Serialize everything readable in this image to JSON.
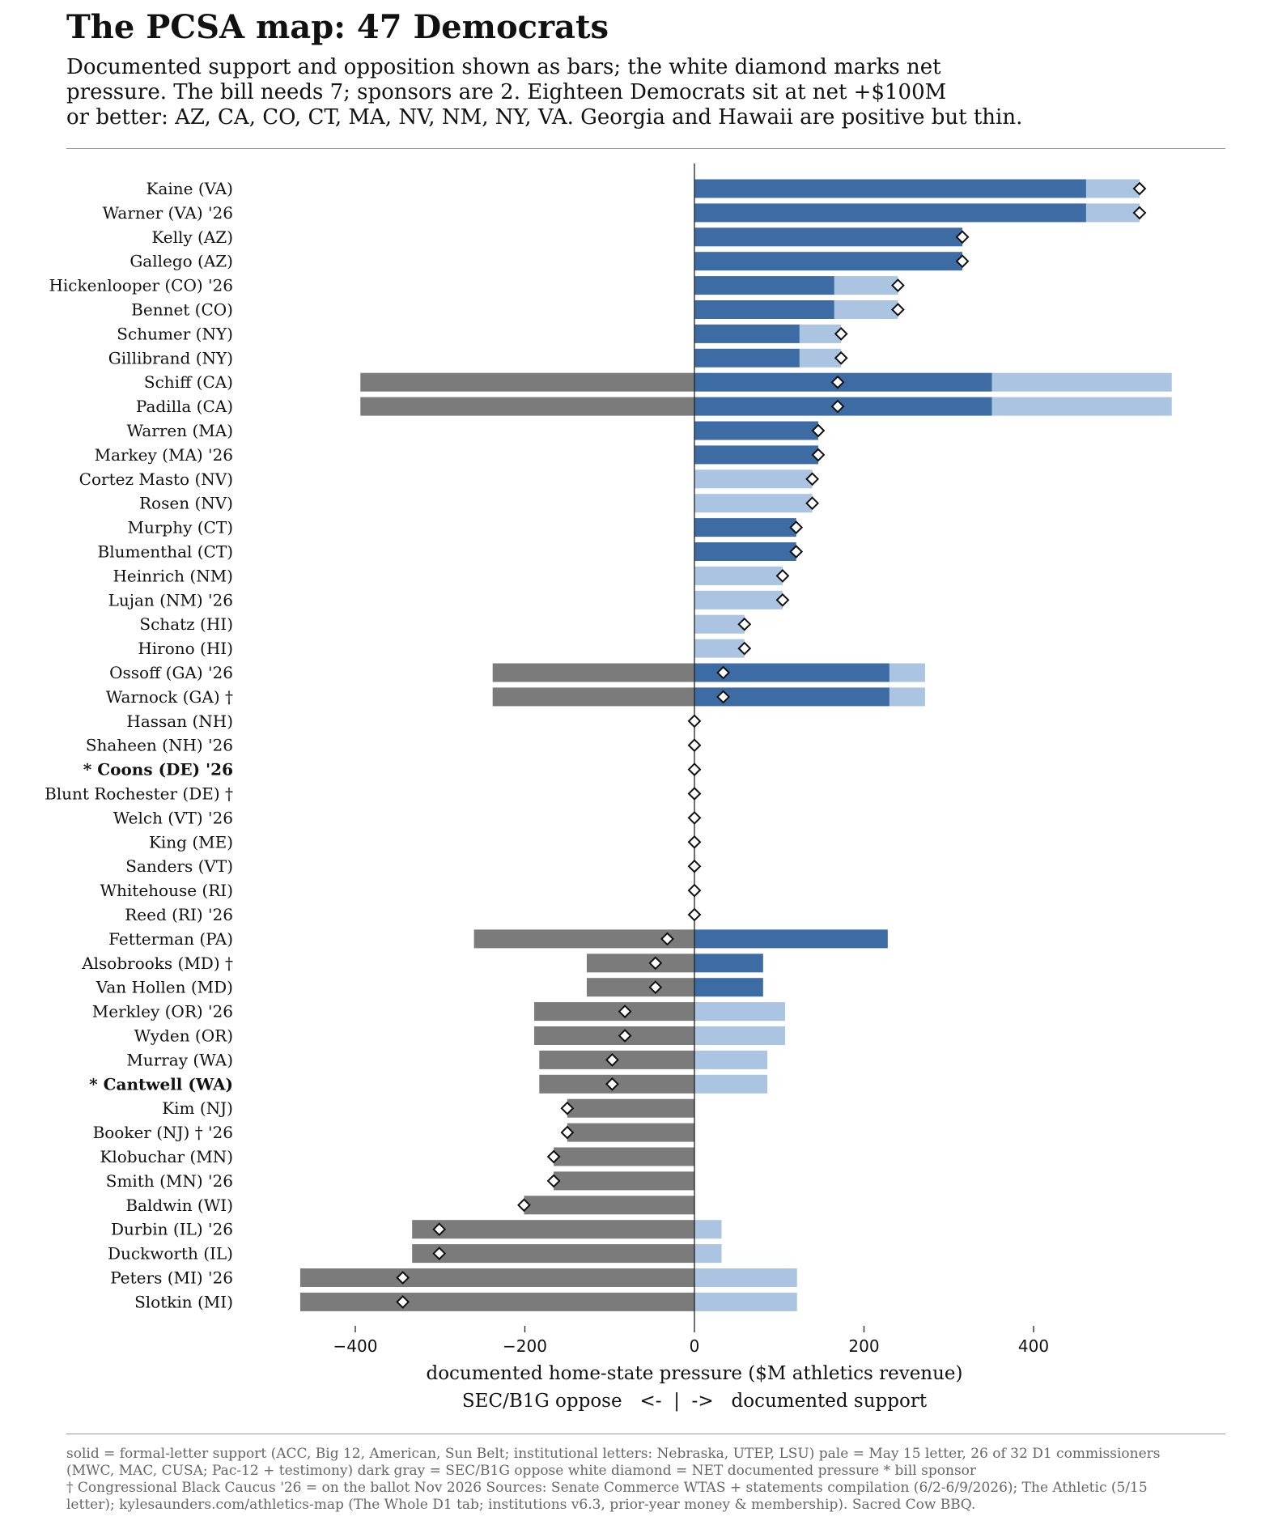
{
  "title": "The PCSA map: 47 Democrats",
  "subtitle_lines": [
    "Documented support and opposition shown as bars; the white diamond marks net",
    "pressure. The bill needs 7; sponsors are 2. Eighteen Democrats sit at net +$100M",
    "or better: AZ, CA, CO, CT, MA, NV, NM, NY, VA. Georgia and Hawaii are positive but thin."
  ],
  "footnote_lines": [
    "solid = formal-letter support (ACC, Big 12, American, Sun Belt; institutional letters: Nebraska, UTEP, LSU)   pale = May 15 letter, 26 of 32 D1 commissioners",
    "(MWC, MAC, CUSA; Pac-12 + testimony)   dark gray = SEC/B1G oppose   white diamond = NET documented pressure   * bill sponsor",
    "† Congressional Black Caucus   '26 = on the ballot Nov 2026   Sources: Senate Commerce WTAS + statements compilation (6/2-6/9/2026); The Athletic (5/15",
    "letter); kylesaunders.com/athletics-map (The Whole D1 tab; institutions v6.3, prior-year money & membership). Sacred Cow BBQ."
  ],
  "colors": {
    "solid_support": "#3d6ca4",
    "pale_support": "#aac4e2",
    "oppose": "#7b7b7b",
    "marker_fill": "#ffffff",
    "marker_stroke": "#111111"
  },
  "chart_data": {
    "type": "bar",
    "orientation": "horizontal-diverging",
    "xlabel": "documented home-state pressure ($M athletics revenue)",
    "xlabel2": "SEC/B1G oppose   <-  |  ->   documented support",
    "xlim": [
      -465,
      565
    ],
    "xticks": [
      -400,
      -200,
      0,
      200,
      400
    ],
    "xtick_labels": [
      "−400",
      "−200",
      "0",
      "200",
      "400"
    ],
    "grid": false,
    "series_keys": [
      "solid",
      "pale",
      "oppose",
      "net"
    ],
    "rows": [
      {
        "label": "Kaine (VA)",
        "solid": 462,
        "pale": 63,
        "oppose": 0,
        "net": 525,
        "sponsor": false
      },
      {
        "label": "Warner (VA) '26",
        "solid": 462,
        "pale": 63,
        "oppose": 0,
        "net": 525,
        "sponsor": false
      },
      {
        "label": "Kelly (AZ)",
        "solid": 316,
        "pale": 0,
        "oppose": 0,
        "net": 316,
        "sponsor": false
      },
      {
        "label": "Gallego (AZ)",
        "solid": 316,
        "pale": 0,
        "oppose": 0,
        "net": 316,
        "sponsor": false
      },
      {
        "label": "Hickenlooper (CO) '26",
        "solid": 165,
        "pale": 75,
        "oppose": 0,
        "net": 240,
        "sponsor": false
      },
      {
        "label": "Bennet (CO)",
        "solid": 165,
        "pale": 75,
        "oppose": 0,
        "net": 240,
        "sponsor": false
      },
      {
        "label": "Schumer (NY)",
        "solid": 124,
        "pale": 49,
        "oppose": 0,
        "net": 173,
        "sponsor": false
      },
      {
        "label": "Gillibrand (NY)",
        "solid": 124,
        "pale": 49,
        "oppose": 0,
        "net": 173,
        "sponsor": false
      },
      {
        "label": "Schiff (CA)",
        "solid": 351,
        "pale": 212,
        "oppose": -394,
        "net": 169,
        "sponsor": false
      },
      {
        "label": "Padilla (CA)",
        "solid": 351,
        "pale": 212,
        "oppose": -394,
        "net": 169,
        "sponsor": false
      },
      {
        "label": "Warren (MA)",
        "solid": 146,
        "pale": 0,
        "oppose": 0,
        "net": 146,
        "sponsor": false
      },
      {
        "label": "Markey (MA) '26",
        "solid": 146,
        "pale": 0,
        "oppose": 0,
        "net": 146,
        "sponsor": false
      },
      {
        "label": "Cortez Masto (NV)",
        "solid": 0,
        "pale": 139,
        "oppose": 0,
        "net": 139,
        "sponsor": false
      },
      {
        "label": "Rosen (NV)",
        "solid": 0,
        "pale": 139,
        "oppose": 0,
        "net": 139,
        "sponsor": false
      },
      {
        "label": "Murphy (CT)",
        "solid": 120,
        "pale": 0,
        "oppose": 0,
        "net": 120,
        "sponsor": false
      },
      {
        "label": "Blumenthal (CT)",
        "solid": 120,
        "pale": 0,
        "oppose": 0,
        "net": 120,
        "sponsor": false
      },
      {
        "label": "Heinrich (NM)",
        "solid": 0,
        "pale": 104,
        "oppose": 0,
        "net": 104,
        "sponsor": false
      },
      {
        "label": "Lujan (NM) '26",
        "solid": 0,
        "pale": 104,
        "oppose": 0,
        "net": 104,
        "sponsor": false
      },
      {
        "label": "Schatz (HI)",
        "solid": 0,
        "pale": 59,
        "oppose": 0,
        "net": 59,
        "sponsor": false
      },
      {
        "label": "Hirono (HI)",
        "solid": 0,
        "pale": 59,
        "oppose": 0,
        "net": 59,
        "sponsor": false
      },
      {
        "label": "Ossoff (GA) '26",
        "solid": 230,
        "pale": 42,
        "oppose": -238,
        "net": 34,
        "sponsor": false
      },
      {
        "label": "Warnock (GA) †",
        "solid": 230,
        "pale": 42,
        "oppose": -238,
        "net": 34,
        "sponsor": false
      },
      {
        "label": "Hassan (NH)",
        "solid": 0,
        "pale": 0,
        "oppose": 0,
        "net": 0,
        "sponsor": false
      },
      {
        "label": "Shaheen (NH) '26",
        "solid": 0,
        "pale": 0,
        "oppose": 0,
        "net": 0,
        "sponsor": false
      },
      {
        "label": "* Coons (DE) '26",
        "solid": 0,
        "pale": 0,
        "oppose": 0,
        "net": 0,
        "sponsor": true
      },
      {
        "label": "Blunt Rochester (DE) †",
        "solid": 0,
        "pale": 0,
        "oppose": 0,
        "net": 0,
        "sponsor": false
      },
      {
        "label": "Welch (VT) '26",
        "solid": 0,
        "pale": 0,
        "oppose": 0,
        "net": 0,
        "sponsor": false
      },
      {
        "label": "King (ME)",
        "solid": 0,
        "pale": 0,
        "oppose": 0,
        "net": 0,
        "sponsor": false
      },
      {
        "label": "Sanders (VT)",
        "solid": 0,
        "pale": 0,
        "oppose": 0,
        "net": 0,
        "sponsor": false
      },
      {
        "label": "Whitehouse (RI)",
        "solid": 0,
        "pale": 0,
        "oppose": 0,
        "net": 0,
        "sponsor": false
      },
      {
        "label": "Reed (RI) '26",
        "solid": 0,
        "pale": 0,
        "oppose": 0,
        "net": 0,
        "sponsor": false
      },
      {
        "label": "Fetterman (PA)",
        "solid": 228,
        "pale": 0,
        "oppose": -260,
        "net": -32,
        "sponsor": false
      },
      {
        "label": "Alsobrooks (MD) †",
        "solid": 81,
        "pale": 0,
        "oppose": -127,
        "net": -46,
        "sponsor": false
      },
      {
        "label": "Van Hollen (MD)",
        "solid": 81,
        "pale": 0,
        "oppose": -127,
        "net": -46,
        "sponsor": false
      },
      {
        "label": "Merkley (OR) '26",
        "solid": 0,
        "pale": 107,
        "oppose": -189,
        "net": -82,
        "sponsor": false
      },
      {
        "label": "Wyden (OR)",
        "solid": 0,
        "pale": 107,
        "oppose": -189,
        "net": -82,
        "sponsor": false
      },
      {
        "label": "Murray (WA)",
        "solid": 0,
        "pale": 86,
        "oppose": -183,
        "net": -97,
        "sponsor": false
      },
      {
        "label": "* Cantwell (WA)",
        "solid": 0,
        "pale": 86,
        "oppose": -183,
        "net": -97,
        "sponsor": true
      },
      {
        "label": "Kim (NJ)",
        "solid": 0,
        "pale": 0,
        "oppose": -150,
        "net": -150,
        "sponsor": false
      },
      {
        "label": "Booker (NJ) † '26",
        "solid": 0,
        "pale": 0,
        "oppose": -150,
        "net": -150,
        "sponsor": false
      },
      {
        "label": "Klobuchar (MN)",
        "solid": 0,
        "pale": 0,
        "oppose": -166,
        "net": -166,
        "sponsor": false
      },
      {
        "label": "Smith (MN) '26",
        "solid": 0,
        "pale": 0,
        "oppose": -166,
        "net": -166,
        "sponsor": false
      },
      {
        "label": "Baldwin (WI)",
        "solid": 0,
        "pale": 0,
        "oppose": -201,
        "net": -201,
        "sponsor": false
      },
      {
        "label": "Durbin (IL) '26",
        "solid": 0,
        "pale": 32,
        "oppose": -333,
        "net": -301,
        "sponsor": false
      },
      {
        "label": "Duckworth (IL)",
        "solid": 0,
        "pale": 32,
        "oppose": -333,
        "net": -301,
        "sponsor": false
      },
      {
        "label": "Peters (MI) '26",
        "solid": 0,
        "pale": 121,
        "oppose": -465,
        "net": -344,
        "sponsor": false
      },
      {
        "label": "Slotkin (MI)",
        "solid": 0,
        "pale": 121,
        "oppose": -465,
        "net": -344,
        "sponsor": false
      }
    ]
  }
}
